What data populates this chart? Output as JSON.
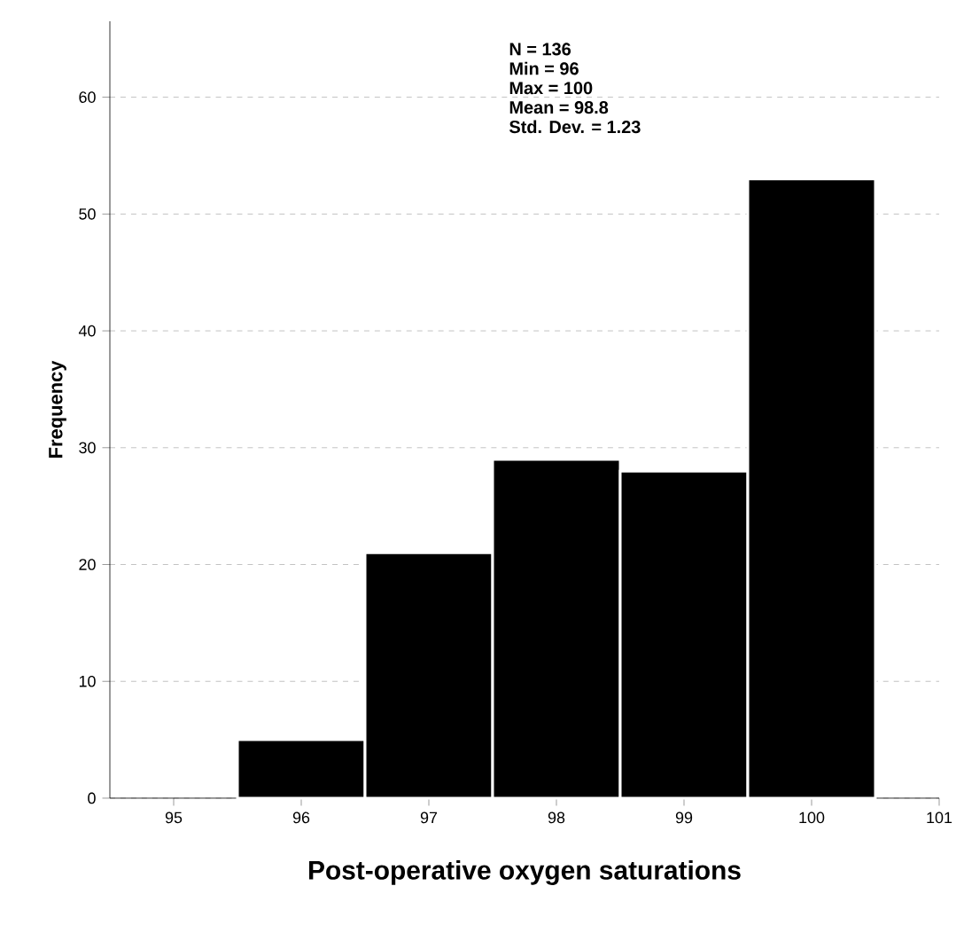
{
  "chart_data": {
    "type": "histogram",
    "xlabel": "Post-operative oxygen saturations",
    "ylabel": "Frequency",
    "bins": [
      95.5,
      96.5,
      97.5,
      98.5,
      99.5,
      100.5
    ],
    "values": [
      5,
      21,
      29,
      28,
      53
    ],
    "color": "#000000",
    "xlim": [
      94.5,
      101
    ],
    "xticks": [
      95,
      96,
      97,
      98,
      99,
      100,
      101
    ],
    "ylim": [
      0,
      66.5
    ],
    "yticks": [
      0,
      10,
      20,
      30,
      40,
      50,
      60
    ],
    "grid": "y",
    "annotations": [
      "N = 136",
      "Min = 96",
      "Max = 100",
      "Mean = 98.8",
      "Std. Dev. = 1.23"
    ]
  }
}
